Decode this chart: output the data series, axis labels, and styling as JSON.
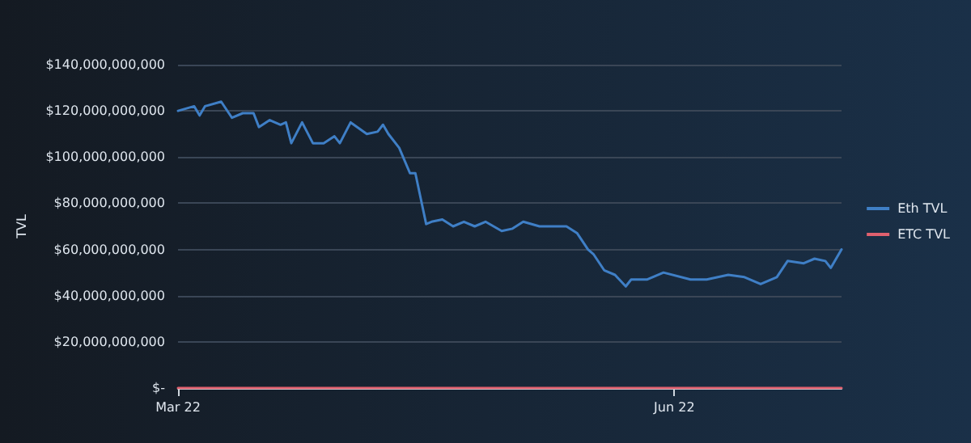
{
  "chart_data": {
    "type": "line",
    "ylabel": "TVL",
    "x": [
      "2022-03-01",
      "2022-03-04",
      "2022-03-05",
      "2022-03-06",
      "2022-03-09",
      "2022-03-11",
      "2022-03-13",
      "2022-03-15",
      "2022-03-16",
      "2022-03-18",
      "2022-03-20",
      "2022-03-21",
      "2022-03-22",
      "2022-03-24",
      "2022-03-26",
      "2022-03-28",
      "2022-03-30",
      "2022-03-31",
      "2022-04-02",
      "2022-04-05",
      "2022-04-07",
      "2022-04-08",
      "2022-04-09",
      "2022-04-11",
      "2022-04-13",
      "2022-04-14",
      "2022-04-16",
      "2022-04-17",
      "2022-04-19",
      "2022-04-21",
      "2022-04-23",
      "2022-04-25",
      "2022-04-27",
      "2022-04-30",
      "2022-05-02",
      "2022-05-04",
      "2022-05-07",
      "2022-05-12",
      "2022-05-14",
      "2022-05-16",
      "2022-05-17",
      "2022-05-19",
      "2022-05-21",
      "2022-05-23",
      "2022-05-24",
      "2022-05-27",
      "2022-05-30",
      "2022-06-04",
      "2022-06-07",
      "2022-06-11",
      "2022-06-14",
      "2022-06-17",
      "2022-06-20",
      "2022-06-22",
      "2022-06-25",
      "2022-06-27",
      "2022-06-29",
      "2022-06-30",
      "2022-07-02"
    ],
    "series": [
      {
        "name": "Eth TVL",
        "color": "#3f7fc6",
        "values": [
          120000000000,
          122000000000,
          118000000000,
          122000000000,
          124000000000,
          117000000000,
          119000000000,
          119000000000,
          113000000000,
          116000000000,
          114000000000,
          115000000000,
          106000000000,
          115000000000,
          106000000000,
          106000000000,
          109000000000,
          106000000000,
          115000000000,
          110000000000,
          111000000000,
          114000000000,
          110000000000,
          104000000000,
          93000000000,
          93000000000,
          71000000000,
          72000000000,
          73000000000,
          70000000000,
          72000000000,
          70000000000,
          72000000000,
          68000000000,
          69000000000,
          72000000000,
          70000000000,
          70000000000,
          67000000000,
          60000000000,
          58000000000,
          51000000000,
          49000000000,
          44000000000,
          47000000000,
          47000000000,
          50000000000,
          47000000000,
          47000000000,
          49000000000,
          48000000000,
          45000000000,
          48000000000,
          55000000000,
          54000000000,
          56000000000,
          55000000000,
          52000000000,
          60000000000
        ]
      },
      {
        "name": "ETC TVL",
        "color": "#e0606e",
        "x": [
          "2022-03-01",
          "2022-07-02"
        ],
        "values": [
          0,
          0
        ]
      }
    ],
    "xlim": [
      "2022-03-01",
      "2022-07-02"
    ],
    "xticks": [
      {
        "value": "2022-03-01",
        "label": "Mar 22"
      },
      {
        "value": "2022-06-01",
        "label": "Jun 22"
      }
    ],
    "ylim": [
      0,
      140000000000
    ],
    "yticks": [
      {
        "value": 0,
        "label": "$-"
      },
      {
        "value": 20000000000,
        "label": "$20,000,000,000"
      },
      {
        "value": 40000000000,
        "label": "$40,000,000,000"
      },
      {
        "value": 60000000000,
        "label": "$60,000,000,000"
      },
      {
        "value": 80000000000,
        "label": "$80,000,000,000"
      },
      {
        "value": 100000000000,
        "label": "$100,000,000,000"
      },
      {
        "value": 120000000000,
        "label": "$120,000,000,000"
      },
      {
        "value": 140000000000,
        "label": "$140,000,000,000"
      }
    ],
    "grid": "y",
    "legend": "right",
    "marker": "none",
    "line_style": "solid"
  }
}
